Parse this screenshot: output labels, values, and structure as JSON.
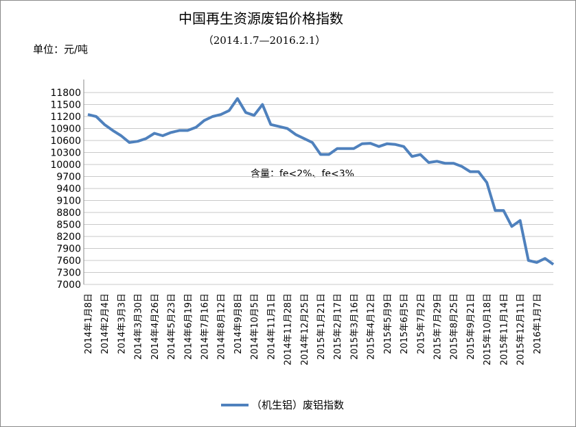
{
  "chart_data": {
    "type": "line",
    "title": "中国再生资源废铝价格指数",
    "subtitle": "（2014.1.7—2016.2.1）",
    "unit_label": "单位：元/吨",
    "annotation": "含量：fe<2%、fe<3%",
    "categories": [
      "2014年1月8日",
      null,
      "2014年2月4日",
      null,
      "2014年3月3日",
      null,
      "2014年3月30日",
      null,
      "2014年4月26日",
      null,
      "2014年5月23日",
      null,
      "2014年6月19日",
      null,
      "2014年7月16日",
      null,
      "2014年8月12日",
      null,
      "2014年9月8日",
      null,
      "2014年10月5日",
      null,
      "2014年11月1日",
      null,
      "2014年11月28日",
      null,
      "2014年12月25日",
      null,
      "2015年1月21日",
      null,
      "2015年2月17日",
      null,
      "2015年3月16日",
      null,
      "2015年4月12日",
      null,
      "2015年5月9日",
      null,
      "2015年6月5日",
      null,
      "2015年7月2日",
      null,
      "2015年7月29日",
      null,
      "2015年8月25日",
      null,
      "2015年9月21日",
      null,
      "2015年10月18日",
      null,
      "2015年11月14日",
      null,
      "2015年12月11日",
      null,
      "2016年1月7日",
      null,
      null
    ],
    "series": [
      {
        "name": "（机生铝）废铝指数",
        "color": "#4f81bd",
        "values": [
          11250,
          11200,
          11000,
          10850,
          10720,
          10550,
          10580,
          10650,
          10780,
          10720,
          10800,
          10850,
          10850,
          10930,
          11100,
          11200,
          11250,
          11350,
          11650,
          11300,
          11230,
          11500,
          11000,
          10950,
          10900,
          10750,
          10650,
          10550,
          10250,
          10250,
          10400,
          10400,
          10400,
          10520,
          10530,
          10450,
          10520,
          10500,
          10450,
          10200,
          10250,
          10050,
          10080,
          10030,
          10030,
          9950,
          9820,
          9820,
          9550,
          8850,
          8850,
          8450,
          8600,
          7600,
          7550,
          7650,
          7500
        ]
      }
    ],
    "ylim": [
      7000,
      11800
    ],
    "yticks": [
      7000,
      7300,
      7600,
      7900,
      8200,
      8500,
      8800,
      9100,
      9400,
      9700,
      10000,
      10300,
      10600,
      10900,
      11200,
      11500,
      11800
    ],
    "grid": true,
    "legend": "bottom"
  }
}
